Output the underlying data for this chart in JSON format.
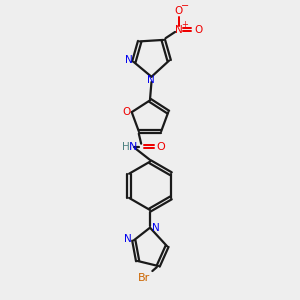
{
  "bg_color": "#eeeeee",
  "bond_color": "#1a1a1a",
  "nitrogen_color": "#0000ee",
  "oxygen_color": "#ee0000",
  "bromine_color": "#cc6600",
  "hydrogen_color": "#4a8080",
  "line_width": 1.6,
  "figsize": [
    3.0,
    3.0
  ],
  "dpi": 100,
  "xlim": [
    0,
    10
  ],
  "ylim": [
    0,
    10
  ]
}
